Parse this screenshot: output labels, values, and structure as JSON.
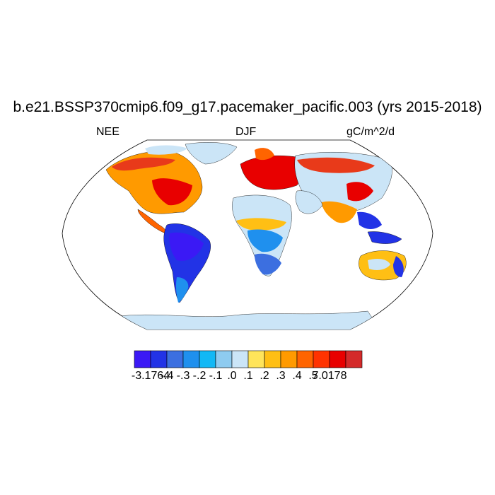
{
  "title": "b.e21.BSSP370cmip6.f09_g17.pacemaker_pacific.003 (yrs 2015-2018)",
  "left_label": "NEE",
  "center_label": "DJF",
  "right_label": "gC/m^2/d",
  "colorbar": {
    "colors": [
      "#3b19f5",
      "#2233e6",
      "#3c6fe0",
      "#1f90ee",
      "#12b8f5",
      "#8ecbf0",
      "#cbe5f7",
      "#ffe45a",
      "#ffbf14",
      "#ff9a00",
      "#ff6400",
      "#ff3300",
      "#e80000",
      "#d42a2a"
    ],
    "labels": [
      "-3.1764",
      "-.4",
      "-.3",
      "-.2",
      "-.1",
      ".0",
      ".1",
      ".2",
      ".3",
      ".4",
      ".5",
      "7.0178"
    ]
  }
}
